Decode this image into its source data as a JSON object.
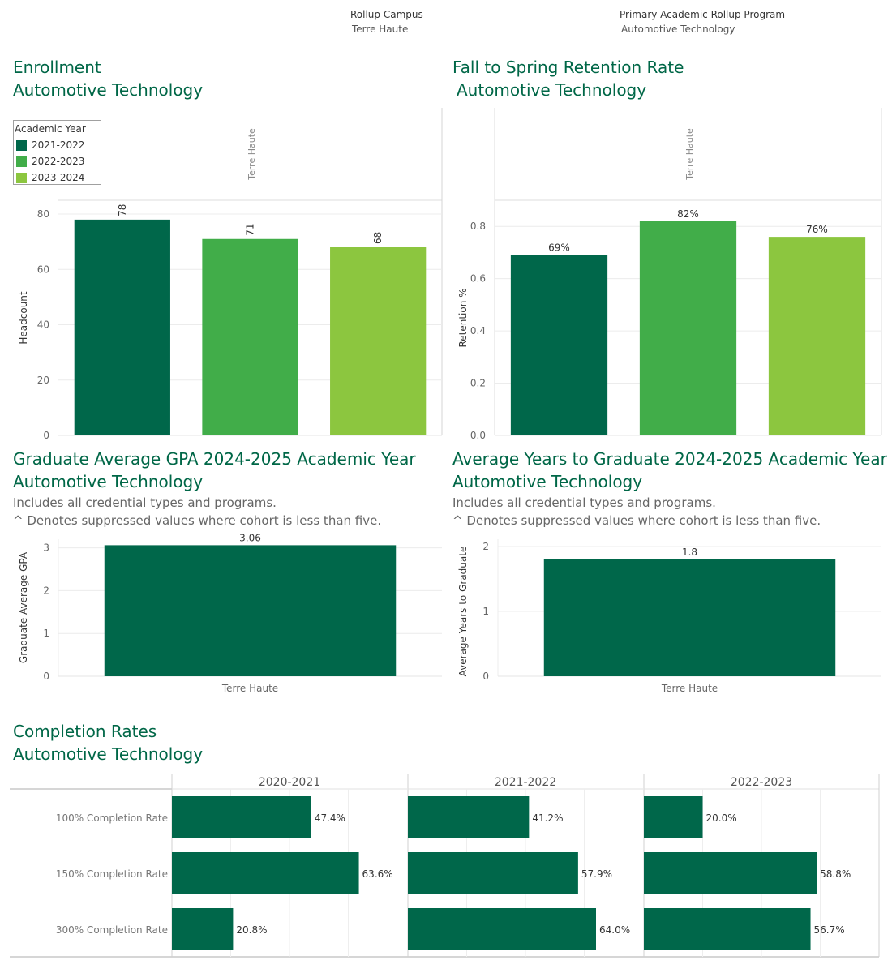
{
  "filters": {
    "campus_label": "Rollup Campus",
    "campus_value": "Terre Haute",
    "program_label": "Primary Academic Rollup Program",
    "program_value": "Automotive Technology"
  },
  "colors": {
    "dark": "#00674a",
    "mid": "#41ad49",
    "light": "#8cc63f",
    "brand": "#006747"
  },
  "enrollment": {
    "title": "Enrollment",
    "subtitle": "Automotive Technology",
    "legend": {
      "title": "Academic Year",
      "items": [
        "2021-2022",
        "2022-2023",
        "2023-2024"
      ]
    }
  },
  "retention": {
    "title": "Fall to Spring Retention Rate",
    "subtitle": "Automotive Technology"
  },
  "gpa": {
    "title": "Graduate Average GPA 2024-2025 Academic Year",
    "subtitle": "Automotive Technology",
    "note1": "Includes all credential types and programs.",
    "note2": "^ Denotes suppressed values where cohort is less than five."
  },
  "years": {
    "title": "Average Years to Graduate 2024-2025 Academic Year",
    "subtitle": "Automotive Technology",
    "note1": "Includes all credential types and programs.",
    "note2": "^ Denotes suppressed values where cohort is less than five."
  },
  "completion": {
    "title": "Completion Rates",
    "subtitle": "Automotive Technology"
  },
  "chart_data": [
    {
      "id": "enrollment",
      "type": "bar",
      "panel_label": "Terre Haute",
      "categories": [
        "2021-2022",
        "2022-2023",
        "2023-2024"
      ],
      "values": [
        78,
        71,
        68
      ],
      "labels": [
        "78",
        "71",
        "68"
      ],
      "ylabel": "Headcount",
      "ylim": [
        0,
        85
      ],
      "yticks": [
        0,
        20,
        40,
        60,
        80
      ],
      "ytick_labels": [
        "0",
        "20",
        "40",
        "60",
        "80"
      ]
    },
    {
      "id": "retention",
      "type": "bar",
      "panel_label": "Terre Haute",
      "categories": [
        "2021-2022",
        "2022-2023",
        "2023-2024"
      ],
      "values": [
        0.69,
        0.82,
        0.76
      ],
      "labels": [
        "69%",
        "82%",
        "76%"
      ],
      "ylabel": "Retention %",
      "ylim": [
        0,
        0.9
      ],
      "yticks": [
        0,
        0.2,
        0.4,
        0.6,
        0.8
      ],
      "ytick_labels": [
        "0.0",
        "0.2",
        "0.4",
        "0.6",
        "0.8"
      ]
    },
    {
      "id": "gpa",
      "type": "bar",
      "categories": [
        "Terre Haute"
      ],
      "values": [
        3.06
      ],
      "labels": [
        "3.06"
      ],
      "ylabel": "Graduate Average GPA",
      "ylim": [
        0,
        3.2
      ],
      "yticks": [
        0,
        1,
        2,
        3
      ],
      "ytick_labels": [
        "0",
        "1",
        "2",
        "3"
      ]
    },
    {
      "id": "years",
      "type": "bar",
      "categories": [
        "Terre Haute"
      ],
      "values": [
        1.8
      ],
      "labels": [
        "1.8"
      ],
      "ylabel": "Average Years to Graduate",
      "ylim": [
        0,
        2
      ],
      "yticks": [
        0,
        1,
        2
      ],
      "ytick_labels": [
        "0",
        "1",
        "2"
      ]
    },
    {
      "id": "completion",
      "type": "bar",
      "orientation": "horizontal",
      "columns": [
        "2020-2021",
        "2021-2022",
        "2022-2023"
      ],
      "rows": [
        "100% Completion Rate",
        "150% Completion Rate",
        "300% Completion Rate"
      ],
      "values": [
        [
          0.474,
          0.636,
          0.208
        ],
        [
          0.412,
          0.579,
          0.64
        ],
        [
          0.2,
          0.588,
          0.567
        ]
      ],
      "labels": [
        [
          "47.4%",
          "63.6%",
          "20.8%"
        ],
        [
          "41.2%",
          "57.9%",
          "64.0%"
        ],
        [
          "20.0%",
          "58.8%",
          "56.7%"
        ]
      ],
      "xlim": [
        0,
        0.8
      ]
    }
  ]
}
